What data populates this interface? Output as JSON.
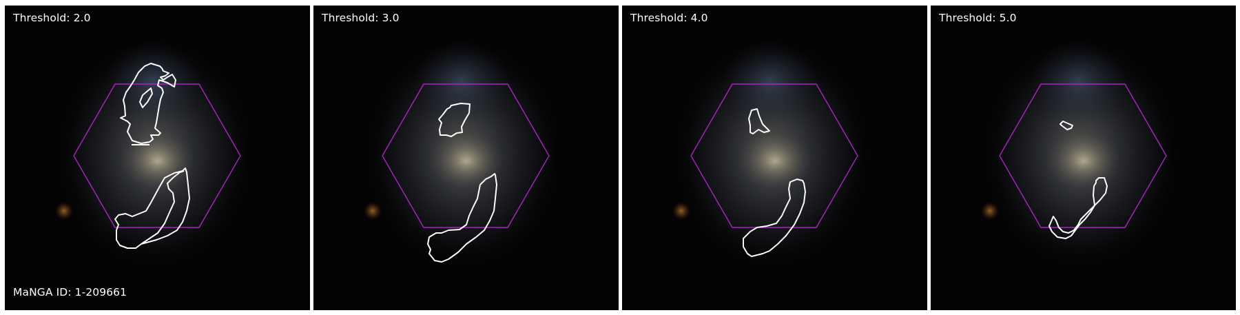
{
  "figure": {
    "panels": [
      {
        "threshold_label": "Threshold: 2.0"
      },
      {
        "threshold_label": "Threshold: 3.0"
      },
      {
        "threshold_label": "Threshold: 4.0"
      },
      {
        "threshold_label": "Threshold: 5.0"
      }
    ],
    "galaxy_label": "MaNGA ID: 1-209661"
  },
  "colors": {
    "background": "#030303",
    "hexagon": "#b020c8",
    "contour": "#ffffff"
  }
}
